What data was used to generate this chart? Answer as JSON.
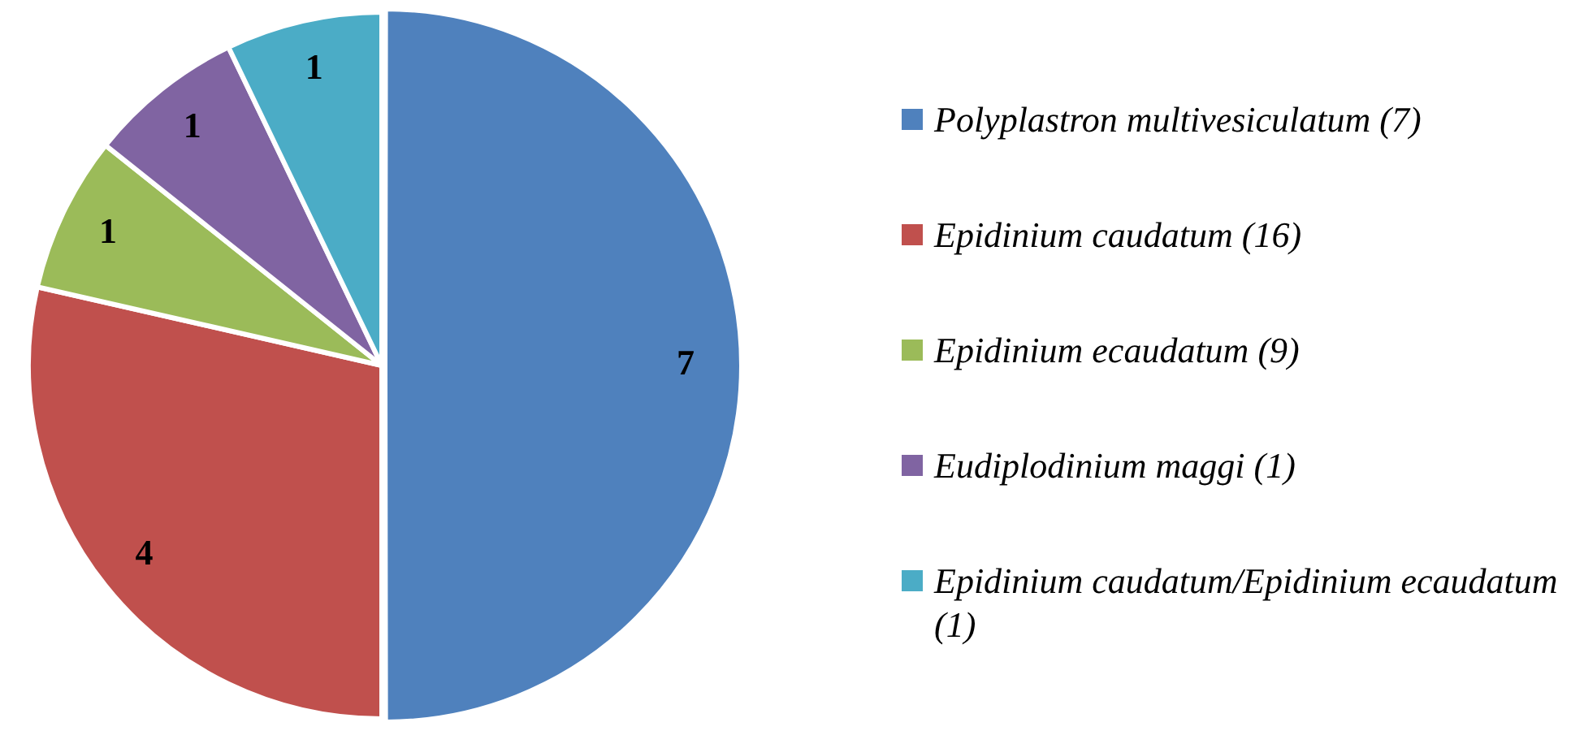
{
  "chart_data": {
    "type": "pie",
    "categories": [
      "Polyplastron multivesiculatum (7)",
      "Epidinium caudatum (16)",
      "Epidinium ecaudatum (9)",
      "Eudiplodinium maggi (1)",
      "Epidinium caudatum/Epidinium ecaudatum (1)"
    ],
    "values": [
      7,
      4,
      1,
      1,
      1
    ],
    "colors": [
      "#4f81bd",
      "#c0504d",
      "#9bbb59",
      "#8064a2",
      "#4bacc6"
    ],
    "data_labels": true,
    "legend": "right"
  }
}
